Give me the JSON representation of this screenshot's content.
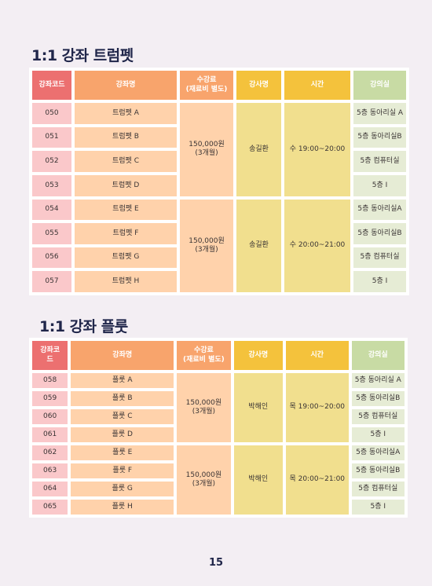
{
  "trumpet": {
    "title": "1:1 강좌 트럼펫",
    "headers": {
      "code": "강좌코드",
      "name": "강좌명",
      "fee_line1": "수강료",
      "fee_line2": "(재료비 별도)",
      "instructor": "강사명",
      "time": "시간",
      "room": "강의실"
    },
    "rows": [
      {
        "code": "050",
        "name": "트럼펫 A",
        "room": "5층 동아리실 A"
      },
      {
        "code": "051",
        "name": "트럼펫 B",
        "room": "5층 동아리실B"
      },
      {
        "code": "052",
        "name": "트럼펫 C",
        "room": "5층 컴퓨터실"
      },
      {
        "code": "053",
        "name": "트럼펫 D",
        "room": "5층 Ⅰ"
      },
      {
        "code": "054",
        "name": "트럼펫 E",
        "room": "5층 동아리실A"
      },
      {
        "code": "055",
        "name": "트럼펫 F",
        "room": "5층 동아리실B"
      },
      {
        "code": "056",
        "name": "트럼펫 G",
        "room": "5층 컴퓨터실"
      },
      {
        "code": "057",
        "name": "트럼펫 H",
        "room": "5층 Ⅰ"
      }
    ],
    "groups": [
      {
        "fee_line1": "150,000원",
        "fee_line2": "(3개월)",
        "instructor": "송길환",
        "time": "수 19:00~20:00"
      },
      {
        "fee_line1": "150,000원",
        "fee_line2": "(3개월)",
        "instructor": "송길환",
        "time": "수 20:00~21:00"
      }
    ]
  },
  "flute": {
    "title": "1:1 강좌 플룻",
    "headers": {
      "code_line1": "강좌코",
      "code_line2": "드",
      "name": "강좌명",
      "fee_line1": "수강료",
      "fee_line2": "(재료비 별도)",
      "instructor": "강사명",
      "time": "시간",
      "room": "강의실"
    },
    "rows": [
      {
        "code": "058",
        "name": "플룻 A",
        "room": "5층 동아리실 A"
      },
      {
        "code": "059",
        "name": "플룻 B",
        "room": "5층 동아리실B"
      },
      {
        "code": "060",
        "name": "플룻 C",
        "room": "5층 컴퓨터실"
      },
      {
        "code": "061",
        "name": "플룻 D",
        "room": "5층 Ⅰ"
      },
      {
        "code": "062",
        "name": "플룻 E",
        "room": "5층 동아리실A"
      },
      {
        "code": "063",
        "name": "플룻 F",
        "room": "5층 동아리실B"
      },
      {
        "code": "064",
        "name": "플룻 G",
        "room": "5층 컴퓨터실"
      },
      {
        "code": "065",
        "name": "플룻 H",
        "room": "5층 Ⅰ"
      }
    ],
    "groups": [
      {
        "fee_line1": "150,000원",
        "fee_line2": "(3개월)",
        "instructor": "박해인",
        "time": "목 19:00~20:00"
      },
      {
        "fee_line1": "150,000원",
        "fee_line2": "(3개월)",
        "instructor": "박해인",
        "time": "목 20:00~21:00"
      }
    ]
  },
  "page_number": "15"
}
